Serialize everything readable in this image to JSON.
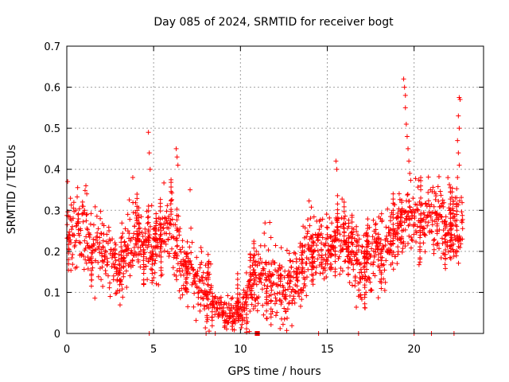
{
  "chart_data": {
    "type": "scatter",
    "title": "Day 085 of 2024, SRMTID for receiver bogt",
    "xlabel": "GPS time / hours",
    "ylabel": "SRMTID / TECUs",
    "xlim": [
      0,
      24
    ],
    "ylim": [
      0,
      0.7
    ],
    "xticks": [
      0,
      5,
      10,
      15,
      20
    ],
    "xtick_labels": [
      "0",
      "5",
      "10",
      "15",
      "20"
    ],
    "yticks": [
      0,
      0.1,
      0.2,
      0.3,
      0.4,
      0.5,
      0.6,
      0.7
    ],
    "ytick_labels": [
      "0",
      "0.1",
      "0.2",
      "0.3",
      "0.4",
      "0.5",
      "0.6",
      "0.7"
    ],
    "grid": true,
    "marker": "+",
    "color": "#ff0000",
    "series": [
      {
        "name": "SRMTID",
        "trend": [
          [
            0.0,
            0.24
          ],
          [
            0.5,
            0.25
          ],
          [
            1.0,
            0.26
          ],
          [
            1.5,
            0.19
          ],
          [
            2.0,
            0.22
          ],
          [
            2.5,
            0.18
          ],
          [
            3.0,
            0.16
          ],
          [
            3.5,
            0.21
          ],
          [
            4.0,
            0.23
          ],
          [
            4.5,
            0.22
          ],
          [
            5.0,
            0.2
          ],
          [
            5.5,
            0.24
          ],
          [
            6.0,
            0.27
          ],
          [
            6.5,
            0.17
          ],
          [
            7.0,
            0.16
          ],
          [
            7.5,
            0.14
          ],
          [
            8.0,
            0.1
          ],
          [
            8.5,
            0.07
          ],
          [
            9.0,
            0.05
          ],
          [
            9.5,
            0.045
          ],
          [
            10.0,
            0.05
          ],
          [
            10.5,
            0.1
          ],
          [
            11.0,
            0.14
          ],
          [
            11.5,
            0.14
          ],
          [
            12.0,
            0.13
          ],
          [
            12.5,
            0.1
          ],
          [
            13.0,
            0.12
          ],
          [
            13.5,
            0.15
          ],
          [
            14.0,
            0.21
          ],
          [
            14.5,
            0.23
          ],
          [
            15.0,
            0.2
          ],
          [
            15.5,
            0.25
          ],
          [
            16.0,
            0.21
          ],
          [
            16.5,
            0.18
          ],
          [
            17.0,
            0.16
          ],
          [
            17.5,
            0.19
          ],
          [
            18.0,
            0.2
          ],
          [
            18.5,
            0.22
          ],
          [
            19.0,
            0.24
          ],
          [
            19.5,
            0.29
          ],
          [
            20.0,
            0.28
          ],
          [
            20.5,
            0.27
          ],
          [
            21.0,
            0.3
          ],
          [
            21.5,
            0.28
          ],
          [
            22.0,
            0.27
          ],
          [
            22.5,
            0.26
          ]
        ],
        "spikes": [
          [
            0.05,
            0.37
          ],
          [
            1.1,
            0.36
          ],
          [
            1.15,
            0.34
          ],
          [
            3.8,
            0.38
          ],
          [
            4.7,
            0.49
          ],
          [
            4.75,
            0.44
          ],
          [
            4.8,
            0.4
          ],
          [
            6.3,
            0.45
          ],
          [
            6.35,
            0.43
          ],
          [
            6.4,
            0.41
          ],
          [
            7.1,
            0.35
          ],
          [
            15.5,
            0.42
          ],
          [
            15.55,
            0.4
          ],
          [
            19.4,
            0.62
          ],
          [
            19.45,
            0.6
          ],
          [
            19.5,
            0.58
          ],
          [
            19.5,
            0.55
          ],
          [
            19.55,
            0.51
          ],
          [
            19.6,
            0.48
          ],
          [
            19.65,
            0.45
          ],
          [
            19.7,
            0.42
          ],
          [
            19.75,
            0.39
          ],
          [
            22.6,
            0.575
          ],
          [
            22.65,
            0.57
          ],
          [
            22.55,
            0.53
          ],
          [
            22.6,
            0.5
          ],
          [
            22.5,
            0.47
          ],
          [
            22.55,
            0.44
          ],
          [
            22.6,
            0.41
          ],
          [
            22.5,
            0.38
          ]
        ],
        "zero_marks": [
          4.75,
          8.55,
          11.0,
          14.5,
          16.8,
          20.0,
          21.0,
          22.3
        ],
        "zero_cluster": [
          10.85,
          11.1
        ]
      }
    ]
  }
}
